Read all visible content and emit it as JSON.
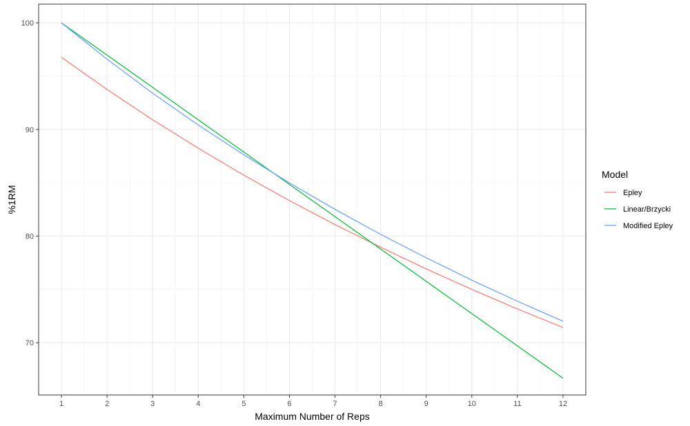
{
  "chart_data": {
    "type": "line",
    "title": "",
    "xlabel": "Maximum Number of Reps",
    "ylabel": "%1RM",
    "x": [
      1,
      2,
      3,
      4,
      5,
      6,
      7,
      8,
      9,
      10,
      11,
      12
    ],
    "xlim": [
      0.5,
      12.5
    ],
    "ylim": [
      65.1,
      101.75
    ],
    "xticks": [
      1,
      2,
      3,
      4,
      5,
      6,
      7,
      8,
      9,
      10,
      11,
      12
    ],
    "yticks": [
      70,
      80,
      90,
      100
    ],
    "grid": true,
    "legend": {
      "title": "Model",
      "position": "right"
    },
    "series": [
      {
        "name": "Epley",
        "color": "#F8766D",
        "values": [
          96.77,
          93.75,
          90.91,
          88.24,
          85.71,
          83.33,
          81.08,
          78.95,
          76.92,
          75.0,
          73.17,
          71.43
        ]
      },
      {
        "name": "Linear/Brzycki",
        "color": "#00BA38",
        "values": [
          100,
          96.97,
          93.94,
          90.91,
          87.88,
          84.85,
          81.82,
          78.79,
          75.76,
          72.73,
          69.7,
          66.67
        ]
      },
      {
        "name": "Modified Epley",
        "color": "#619CFF",
        "values": [
          100,
          96.59,
          93.4,
          90.42,
          87.62,
          84.98,
          82.51,
          80.17,
          77.96,
          75.87,
          73.89,
          72.01
        ]
      }
    ]
  }
}
